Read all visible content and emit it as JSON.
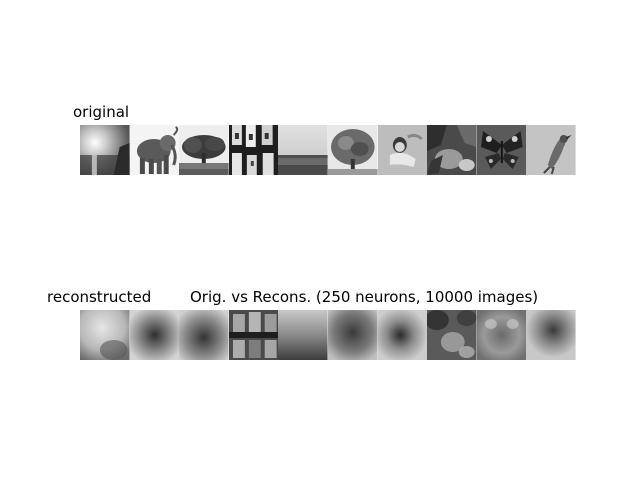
{
  "figure": {
    "original_label": "original",
    "reconstructed_label": "reconstructed",
    "title": "Orig. vs Recons. (250 neurons, 10000 images)"
  },
  "original_images": [
    {
      "name": "sun-over-water-image"
    },
    {
      "name": "elephant-image"
    },
    {
      "name": "tree-landscape-image"
    },
    {
      "name": "bottles-image"
    },
    {
      "name": "horizon-landscape-image"
    },
    {
      "name": "leafy-tree-image"
    },
    {
      "name": "reclining-person-image"
    },
    {
      "name": "rocky-scene-image"
    },
    {
      "name": "butterfly-image"
    },
    {
      "name": "bird-image"
    }
  ],
  "reconstructed_images": [
    {
      "name": "reconstruction-1-image"
    },
    {
      "name": "reconstruction-2-image"
    },
    {
      "name": "reconstruction-3-image"
    },
    {
      "name": "reconstruction-4-image"
    },
    {
      "name": "reconstruction-5-image"
    },
    {
      "name": "reconstruction-6-image"
    },
    {
      "name": "reconstruction-7-image"
    },
    {
      "name": "reconstruction-8-image"
    },
    {
      "name": "reconstruction-9-image"
    },
    {
      "name": "reconstruction-10-image"
    }
  ]
}
